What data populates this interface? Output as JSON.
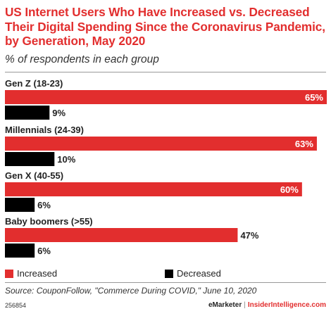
{
  "chart_data": {
    "type": "bar",
    "orientation": "horizontal",
    "title": "US Internet Users Who Have Increased vs. Decreased Their Digital Spending Since the Coronavirus Pandemic, by Generation, May 2020",
    "subtitle": "% of respondents in each group",
    "categories": [
      "Gen Z (18-23)",
      "Millennials (24-39)",
      "Gen X (40-55)",
      "Baby boomers (>55)"
    ],
    "series": [
      {
        "name": "Increased",
        "values": [
          65,
          63,
          60,
          47
        ],
        "labels": [
          "65%",
          "63%",
          "60%",
          "47%"
        ],
        "color": "#e22e2e"
      },
      {
        "name": "Decreased",
        "values": [
          9,
          10,
          6,
          6
        ],
        "labels": [
          "9%",
          "10%",
          "6%",
          "6%"
        ],
        "color": "#000000"
      }
    ],
    "xlim": [
      0,
      65
    ],
    "grid": false,
    "legend_position": "bottom",
    "source": "Source: CouponFollow, \"Commerce During COVID,\" June 10, 2020"
  },
  "footer": {
    "chart_id": "256854",
    "brand_emarketer": "eMarketer",
    "brand_separator": "|",
    "brand_insider": "InsiderIntelligence.com"
  },
  "colors": {
    "accent": "#e22e2e",
    "decreased": "#000000"
  }
}
